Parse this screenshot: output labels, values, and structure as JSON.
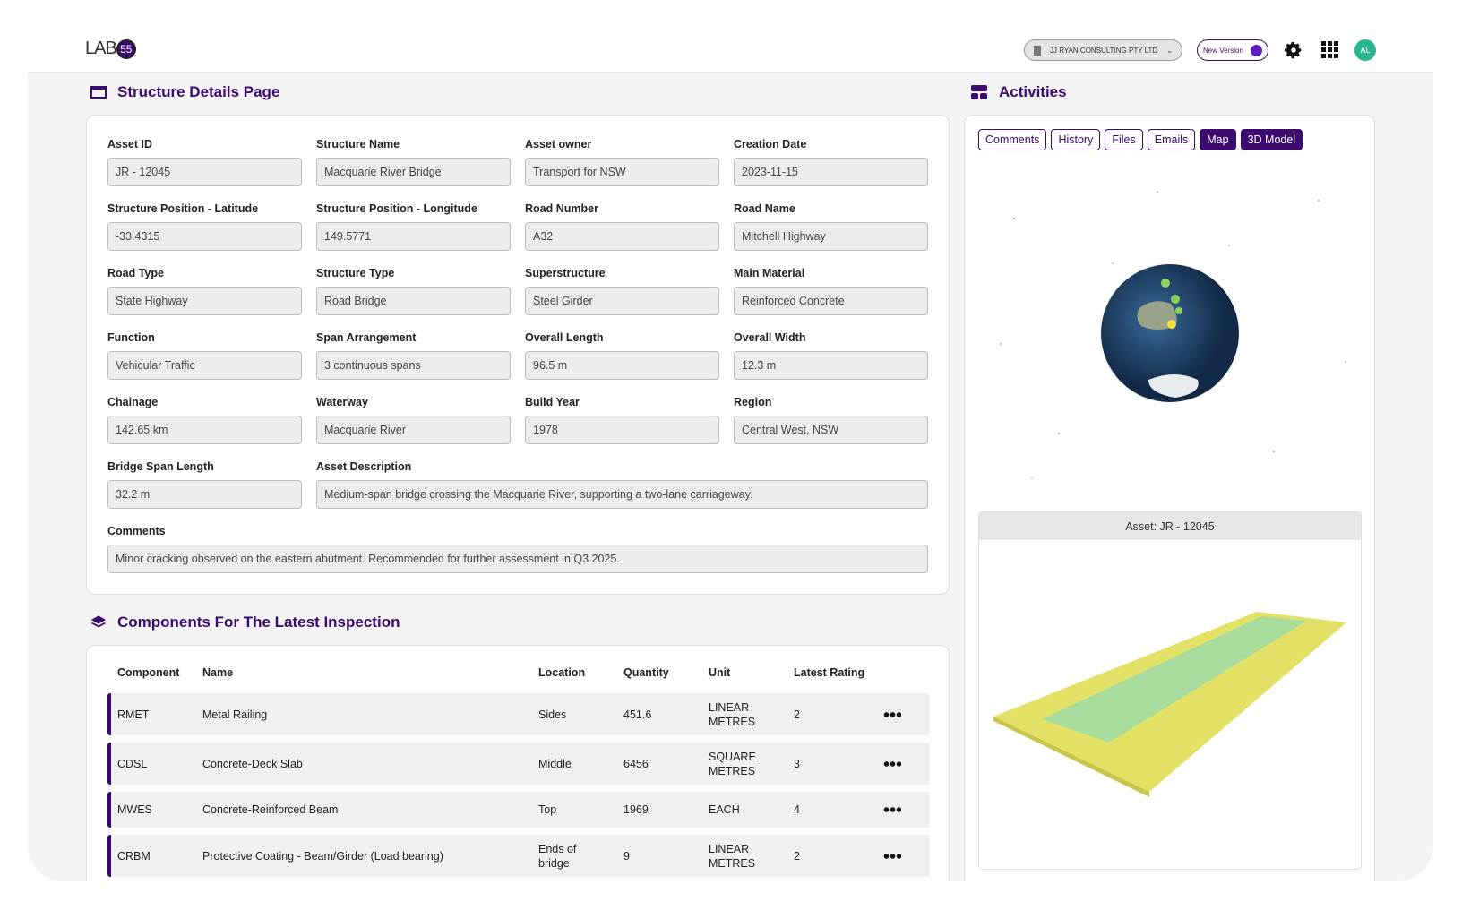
{
  "header": {
    "logo": "LAB",
    "logo_badge": "55",
    "organisation": "JJ RYAN CONSULTING PTY LTD",
    "toggle_label": "New Version",
    "avatar": "AL"
  },
  "structure": {
    "title": "Structure Details Page",
    "fields": [
      {
        "label": "Asset ID",
        "value": "JR - 12045"
      },
      {
        "label": "Structure Name",
        "value": "Macquarie River Bridge"
      },
      {
        "label": "Asset owner",
        "value": "Transport for NSW"
      },
      {
        "label": "Creation Date",
        "value": "2023-11-15"
      },
      {
        "label": "Structure Position - Latitude",
        "value": "-33.4315"
      },
      {
        "label": "Structure Position - Longitude",
        "value": "149.5771"
      },
      {
        "label": "Road Number",
        "value": "A32"
      },
      {
        "label": "Road Name",
        "value": "Mitchell Highway"
      },
      {
        "label": "Road Type",
        "value": "State Highway"
      },
      {
        "label": "Structure Type",
        "value": "Road Bridge"
      },
      {
        "label": "Superstructure",
        "value": "Steel Girder"
      },
      {
        "label": "Main Material",
        "value": "Reinforced Concrete"
      },
      {
        "label": "Function",
        "value": "Vehicular Traffic"
      },
      {
        "label": "Span Arrangement",
        "value": "3 continuous spans"
      },
      {
        "label": "Overall Length",
        "value": "96.5 m"
      },
      {
        "label": "Overall Width",
        "value": "12.3 m"
      },
      {
        "label": "Chainage",
        "value": "142.65 km"
      },
      {
        "label": "Waterway",
        "value": "Macquarie River"
      },
      {
        "label": "Build Year",
        "value": "1978"
      },
      {
        "label": "Region",
        "value": "Central West, NSW"
      },
      {
        "label": "Bridge Span Length",
        "value": "32.2 m"
      },
      {
        "label": "Asset Description",
        "value": "Medium-span bridge crossing the Macquarie River, supporting a two-lane carriageway."
      },
      {
        "label": "Comments",
        "value": "Minor cracking observed on the eastern abutment. Recommended for further assessment in Q3 2025."
      }
    ]
  },
  "components": {
    "title": "Components For The Latest Inspection",
    "columns": [
      "Component",
      "Name",
      "Location",
      "Quantity",
      "Unit",
      "Latest Rating"
    ],
    "rows": [
      [
        "RMET",
        "Metal Railing",
        "Sides",
        "451.6",
        "LINEAR METRES",
        "2"
      ],
      [
        "CDSL",
        "Concrete-Deck Slab",
        "Middle",
        "6456",
        "SQUARE METRES",
        "3"
      ],
      [
        "MWES",
        "Concrete-Reinforced Beam",
        "Top",
        "1969",
        "EACH",
        "4"
      ],
      [
        "CRBM",
        "Protective Coating - Beam/Girder (Load bearing)",
        "Ends of bridge",
        "9",
        "LINEAR METRES",
        "2"
      ]
    ]
  },
  "activities": {
    "title": "Activities",
    "tabs": [
      "Comments",
      "History",
      "Files",
      "Emails",
      "Map",
      "3D Model"
    ],
    "asset_label": "Asset: JR - 12045"
  }
}
